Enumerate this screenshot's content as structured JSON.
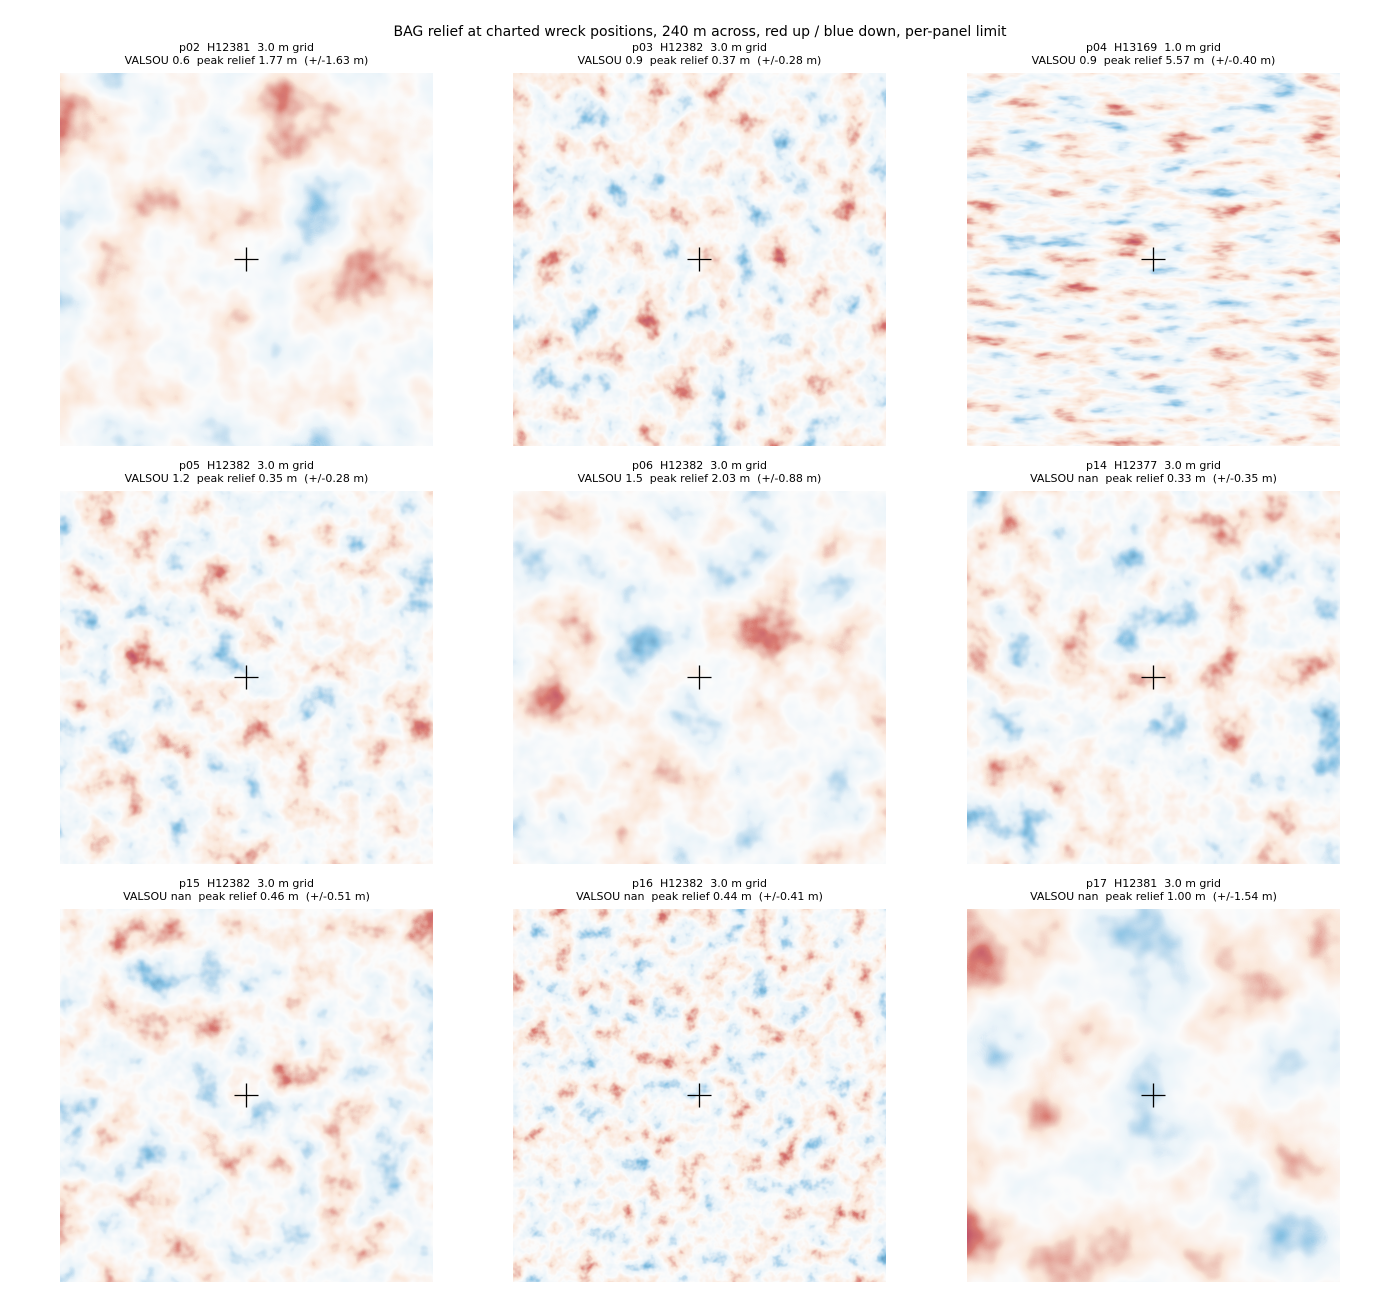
{
  "title": "BAG relief at charted wreck positions, 240 m across, red up / blue down, per-panel limit",
  "panels": [
    {
      "line1": "p02  H12381  3.0 m grid",
      "line2": "VALSOU 0.6  peak relief 1.77 m  (+/-1.63 m)"
    },
    {
      "line1": "p03  H12382  3.0 m grid",
      "line2": "VALSOU 0.9  peak relief 0.37 m  (+/-0.28 m)"
    },
    {
      "line1": "p04  H13169  1.0 m grid",
      "line2": "VALSOU 0.9  peak relief 5.57 m  (+/-0.40 m)"
    },
    {
      "line1": "p05  H12382  3.0 m grid",
      "line2": "VALSOU 1.2  peak relief 0.35 m  (+/-0.28 m)"
    },
    {
      "line1": "p06  H12382  3.0 m grid",
      "line2": "VALSOU 1.5  peak relief 2.03 m  (+/-0.88 m)"
    },
    {
      "line1": "p14  H12377  3.0 m grid",
      "line2": "VALSOU nan  peak relief 0.33 m  (+/-0.35 m)"
    },
    {
      "line1": "p15  H12382  3.0 m grid",
      "line2": "VALSOU nan  peak relief 0.46 m  (+/-0.51 m)"
    },
    {
      "line1": "p16  H12382  3.0 m grid",
      "line2": "VALSOU nan  peak relief 0.44 m  (+/-0.41 m)"
    },
    {
      "line1": "p17  H12381  3.0 m grid",
      "line2": "VALSOU nan  peak relief 1.00 m  (+/-1.54 m)"
    }
  ]
}
